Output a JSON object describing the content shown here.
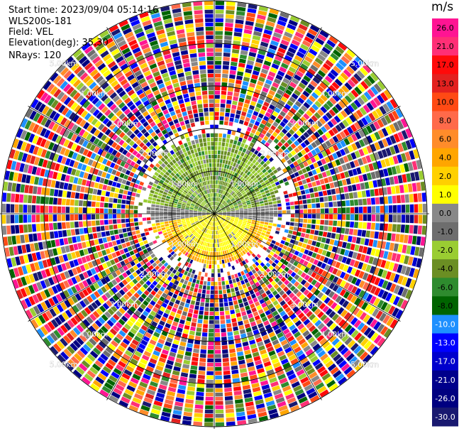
{
  "header": {
    "start_time": "Start time: 2023/09/04 05:14:16",
    "site": "WLS200s-181",
    "field": "Field: VEL",
    "elevation": "Elevation(deg): 35.30",
    "nrays": "NRays: 120"
  },
  "chart_data": {
    "type": "heatmap",
    "projection": "polar-ppi",
    "field": "VEL",
    "unit": "m/s",
    "nrays": 120,
    "elevation_deg": 35.3,
    "range_rings": [
      {
        "label": "1.00km"
      },
      {
        "label": "2.00km"
      },
      {
        "label": "3.00km"
      },
      {
        "label": "4.00km"
      },
      {
        "label": "5.00km"
      }
    ],
    "colorbar": {
      "ticks": [
        "26.0",
        "21.0",
        "17.0",
        "13.0",
        "10.0",
        "8.0",
        "6.0",
        "4.0",
        "2.0",
        "1.0",
        "0.0",
        "-1.0",
        "-2.0",
        "-4.0",
        "-6.0",
        "-8.0",
        "-10.0",
        "-13.0",
        "-17.0",
        "-21.0",
        "-26.0",
        "-30.0"
      ],
      "colors": [
        "#ff1493",
        "#ff2f76",
        "#ff0a0a",
        "#e3211f",
        "#ff4a14",
        "#ff6a4a",
        "#ff8c2a",
        "#ffa500",
        "#ffd000",
        "#ffff00",
        "#888888",
        "#6e6e6e",
        "#9acd32",
        "#6b8e23",
        "#2e8b2e",
        "#006400",
        "#1e90ff",
        "#0000ff",
        "#0000cd",
        "#00008b",
        "#000080",
        "#191970"
      ]
    },
    "inner_region_note": "near ranges: negative velocities (green) to the north, positive (yellow/orange) to the south; far ranges: noise"
  }
}
